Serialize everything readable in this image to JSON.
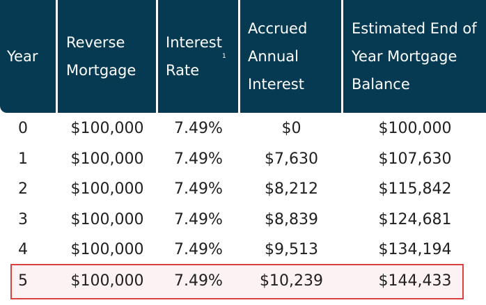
{
  "table": {
    "headers": [
      "Year",
      "Reverse\nMortgage",
      "Interest\nRate",
      "Accrued\nAnnual\nInterest",
      "Estimated End of\nYear Mortgage\nBalance"
    ],
    "interest_rate_footnote": "1",
    "rows": [
      [
        "0",
        "$100,000",
        "7.49%",
        "$0",
        "$100,000"
      ],
      [
        "1",
        "$100,000",
        "7.49%",
        "$7,630",
        "$107,630"
      ],
      [
        "2",
        "$100,000",
        "7.49%",
        "$8,212",
        "$115,842"
      ],
      [
        "3",
        "$100,000",
        "7.49%",
        "$8,839",
        "$124,681"
      ],
      [
        "4",
        "$100,000",
        "7.49%",
        "$9,513",
        "$134,194"
      ],
      [
        "5",
        "$100,000",
        "7.49%",
        "$10,239",
        "$144,433"
      ]
    ],
    "highlighted_row": 5
  },
  "colors": {
    "header_bg": "#063a52",
    "highlight_border": "#d9413f",
    "highlight_bg": "#fdf2f3"
  }
}
